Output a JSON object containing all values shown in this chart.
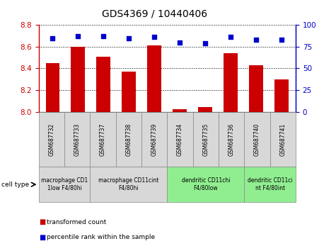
{
  "title": "GDS4369 / 10440406",
  "samples": [
    "GSM687732",
    "GSM687733",
    "GSM687737",
    "GSM687738",
    "GSM687739",
    "GSM687734",
    "GSM687735",
    "GSM687736",
    "GSM687740",
    "GSM687741"
  ],
  "transformed_count": [
    8.45,
    8.6,
    8.51,
    8.37,
    8.61,
    8.02,
    8.04,
    8.54,
    8.43,
    8.3
  ],
  "percentile_rank": [
    85,
    87,
    87,
    85,
    86,
    80,
    79,
    86,
    83,
    83
  ],
  "ylim_left": [
    8.0,
    8.8
  ],
  "ylim_right": [
    0,
    100
  ],
  "yticks_left": [
    8.0,
    8.2,
    8.4,
    8.6,
    8.8
  ],
  "yticks_right": [
    0,
    25,
    50,
    75,
    100
  ],
  "left_color": "#cc0000",
  "right_color": "#0000cc",
  "bar_color": "#cc0000",
  "dot_color": "#0000cc",
  "cell_type_groups": [
    {
      "label": "macrophage CD1\n1low F4/80hi",
      "start": 0,
      "end": 2,
      "color": "#d8d8d8"
    },
    {
      "label": "macrophage CD11cint\nF4/80hi",
      "start": 2,
      "end": 5,
      "color": "#d8d8d8"
    },
    {
      "label": "dendritic CD11chi\nF4/80low",
      "start": 5,
      "end": 8,
      "color": "#90ee90"
    },
    {
      "label": "dendritic CD11ci\nnt F4/80int",
      "start": 8,
      "end": 10,
      "color": "#90ee90"
    }
  ],
  "legend_bar_label": "transformed count",
  "legend_dot_label": "percentile rank within the sample",
  "cell_type_label": "cell type"
}
